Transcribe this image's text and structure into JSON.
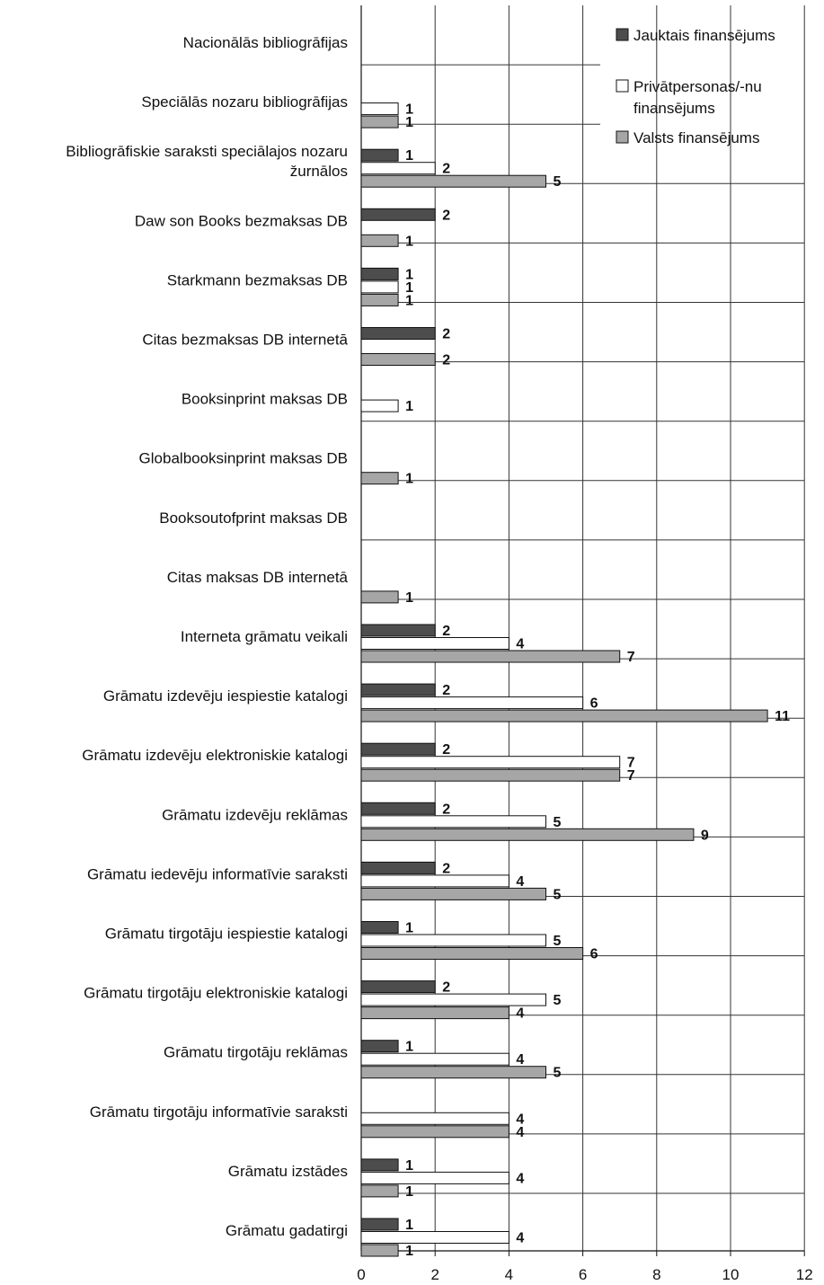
{
  "chart_data": {
    "type": "bar",
    "orientation": "horizontal",
    "title": "",
    "xlabel": "",
    "ylabel": "",
    "xlim": [
      0,
      12
    ],
    "x_ticks": [
      "0",
      "2",
      "4",
      "6",
      "8",
      "10",
      "12"
    ],
    "grid": true,
    "legend_position": "top-right",
    "categories": [
      [
        "Nacionālās bibliogrāfijas"
      ],
      [
        "Speciālās nozaru bibliogrāfijas"
      ],
      [
        "Bibliogrāfiskie saraksti speciālajos nozaru",
        "žurnālos"
      ],
      [
        "Daw son Books bezmaksas DB"
      ],
      [
        "Starkmann bezmaksas DB"
      ],
      [
        "Citas bezmaksas DB internetā"
      ],
      [
        "Booksinprint maksas DB"
      ],
      [
        "Globalbooksinprint maksas DB"
      ],
      [
        "Booksoutofprint maksas DB"
      ],
      [
        "Citas maksas DB internetā"
      ],
      [
        "Interneta grāmatu veikali"
      ],
      [
        "Grāmatu izdevēju iespiestie katalogi"
      ],
      [
        "Grāmatu izdevēju elektroniskie katalogi"
      ],
      [
        "Grāmatu izdevēju reklāmas"
      ],
      [
        "Grāmatu iedevēju informatīvie saraksti"
      ],
      [
        "Grāmatu tirgotāju iespiestie katalogi"
      ],
      [
        "Grāmatu tirgotāju elektroniskie katalogi"
      ],
      [
        "Grāmatu tirgotāju reklāmas"
      ],
      [
        "Grāmatu tirgotāju informatīvie saraksti"
      ],
      [
        "Grāmatu izstādes"
      ],
      [
        "Grāmatu gadatirgi"
      ]
    ],
    "series": [
      {
        "name": "Jauktais finansējums",
        "color": "#4d4d4d",
        "values": [
          null,
          null,
          1,
          2,
          1,
          2,
          null,
          null,
          null,
          null,
          2,
          2,
          2,
          2,
          2,
          1,
          2,
          1,
          null,
          1,
          1
        ]
      },
      {
        "name": "Privātpersonas/-nu finansējums",
        "legend_lines": [
          "Privātpersonas/-nu",
          "finansējums"
        ],
        "color": "#ffffff",
        "values": [
          null,
          1,
          2,
          null,
          1,
          null,
          1,
          null,
          null,
          null,
          4,
          6,
          7,
          5,
          4,
          5,
          5,
          4,
          4,
          4,
          4
        ]
      },
      {
        "name": "Valsts finansējums",
        "color": "#a6a6a6",
        "values": [
          null,
          1,
          5,
          1,
          1,
          2,
          null,
          1,
          null,
          1,
          7,
          11,
          7,
          9,
          5,
          6,
          4,
          5,
          4,
          1,
          1
        ]
      }
    ]
  }
}
